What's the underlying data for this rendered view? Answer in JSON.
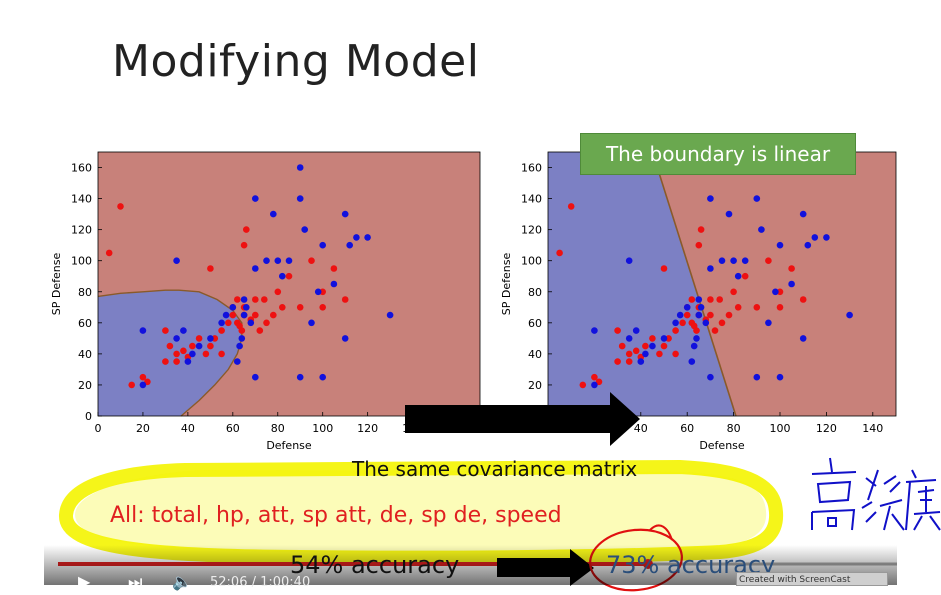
{
  "slide": {
    "title": "Modifying Model",
    "callout": "The boundary is linear",
    "covariance_label": "The same covariance matrix",
    "features_label": "All: total, hp, att, sp att, de, sp de, speed",
    "accuracy_before": "54% accuracy",
    "accuracy_after": "73% accuracy",
    "handwriting": "高維度"
  },
  "player": {
    "time": "52:06 / 1:00:40",
    "watermark": "Created with ScreenCast"
  },
  "colors": {
    "red_region": "#c8817a",
    "blue_region": "#7c80c4",
    "red_point": "#ee1111",
    "blue_point": "#1111dd",
    "callout_bg": "#6aa84f",
    "highlight": "#f4f400",
    "annotation": "#e01010",
    "ink": "#1010c8"
  },
  "chart_data": [
    {
      "type": "scatter",
      "xlabel": "Defense",
      "ylabel": "SP Defense",
      "xlim": [
        0,
        170
      ],
      "ylim": [
        0,
        170
      ],
      "xticks": [
        0,
        20,
        40,
        60,
        80,
        100,
        120,
        140,
        160
      ],
      "yticks": [
        0,
        20,
        40,
        60,
        80,
        100,
        120,
        140,
        160
      ],
      "regions": [
        "red",
        "blue (curved boundary, lower-left)"
      ],
      "series": [
        {
          "color": "red",
          "points": [
            [
              5,
              105
            ],
            [
              10,
              135
            ],
            [
              15,
              20
            ],
            [
              20,
              25
            ],
            [
              22,
              22
            ],
            [
              30,
              55
            ],
            [
              30,
              35
            ],
            [
              32,
              45
            ],
            [
              35,
              40
            ],
            [
              35,
              35
            ],
            [
              38,
              42
            ],
            [
              40,
              38
            ],
            [
              42,
              45
            ],
            [
              45,
              50
            ],
            [
              48,
              40
            ],
            [
              50,
              95
            ],
            [
              50,
              45
            ],
            [
              52,
              50
            ],
            [
              55,
              55
            ],
            [
              55,
              40
            ],
            [
              58,
              60
            ],
            [
              60,
              70
            ],
            [
              60,
              65
            ],
            [
              62,
              75
            ],
            [
              62,
              60
            ],
            [
              63,
              58
            ],
            [
              64,
              55
            ],
            [
              65,
              110
            ],
            [
              65,
              65
            ],
            [
              65,
              70
            ],
            [
              66,
              120
            ],
            [
              68,
              62
            ],
            [
              70,
              75
            ],
            [
              70,
              65
            ],
            [
              72,
              55
            ],
            [
              74,
              75
            ],
            [
              75,
              60
            ],
            [
              78,
              65
            ],
            [
              80,
              80
            ],
            [
              82,
              70
            ],
            [
              85,
              90
            ],
            [
              90,
              70
            ],
            [
              95,
              100
            ],
            [
              100,
              70
            ],
            [
              100,
              80
            ],
            [
              105,
              95
            ],
            [
              110,
              75
            ]
          ]
        },
        {
          "color": "blue",
          "points": [
            [
              20,
              55
            ],
            [
              20,
              20
            ],
            [
              35,
              100
            ],
            [
              35,
              50
            ],
            [
              38,
              55
            ],
            [
              40,
              35
            ],
            [
              42,
              40
            ],
            [
              45,
              45
            ],
            [
              50,
              50
            ],
            [
              55,
              60
            ],
            [
              57,
              65
            ],
            [
              60,
              70
            ],
            [
              62,
              35
            ],
            [
              63,
              45
            ],
            [
              64,
              50
            ],
            [
              65,
              75
            ],
            [
              65,
              65
            ],
            [
              66,
              70
            ],
            [
              68,
              60
            ],
            [
              70,
              140
            ],
            [
              70,
              95
            ],
            [
              70,
              25
            ],
            [
              75,
              100
            ],
            [
              78,
              130
            ],
            [
              80,
              100
            ],
            [
              82,
              90
            ],
            [
              85,
              100
            ],
            [
              90,
              160
            ],
            [
              90,
              140
            ],
            [
              90,
              25
            ],
            [
              92,
              120
            ],
            [
              95,
              60
            ],
            [
              98,
              80
            ],
            [
              100,
              110
            ],
            [
              100,
              25
            ],
            [
              105,
              85
            ],
            [
              110,
              130
            ],
            [
              110,
              50
            ],
            [
              112,
              110
            ],
            [
              115,
              115
            ],
            [
              120,
              115
            ],
            [
              130,
              65
            ]
          ]
        }
      ]
    },
    {
      "type": "scatter",
      "xlabel": "Defense",
      "ylabel": "SP Defense",
      "xlim": [
        0,
        150
      ],
      "ylim": [
        0,
        170
      ],
      "xticks": [
        0,
        20,
        40,
        60,
        80,
        100,
        120,
        140
      ],
      "yticks": [
        0,
        20,
        40,
        60,
        80,
        100,
        120,
        140,
        160
      ],
      "regions": [
        "blue (left)",
        "red (right, linear boundary)"
      ],
      "series": [
        {
          "color": "red",
          "points": [
            [
              5,
              105
            ],
            [
              10,
              135
            ],
            [
              15,
              20
            ],
            [
              20,
              25
            ],
            [
              22,
              22
            ],
            [
              30,
              55
            ],
            [
              30,
              35
            ],
            [
              32,
              45
            ],
            [
              35,
              40
            ],
            [
              35,
              35
            ],
            [
              38,
              42
            ],
            [
              40,
              38
            ],
            [
              42,
              45
            ],
            [
              45,
              50
            ],
            [
              48,
              40
            ],
            [
              50,
              95
            ],
            [
              50,
              45
            ],
            [
              52,
              50
            ],
            [
              55,
              55
            ],
            [
              55,
              40
            ],
            [
              58,
              60
            ],
            [
              60,
              70
            ],
            [
              60,
              65
            ],
            [
              62,
              75
            ],
            [
              62,
              60
            ],
            [
              63,
              58
            ],
            [
              64,
              55
            ],
            [
              65,
              110
            ],
            [
              65,
              65
            ],
            [
              65,
              70
            ],
            [
              66,
              120
            ],
            [
              68,
              62
            ],
            [
              70,
              75
            ],
            [
              70,
              65
            ],
            [
              72,
              55
            ],
            [
              74,
              75
            ],
            [
              75,
              60
            ],
            [
              78,
              65
            ],
            [
              80,
              80
            ],
            [
              82,
              70
            ],
            [
              85,
              90
            ],
            [
              90,
              70
            ],
            [
              95,
              100
            ],
            [
              100,
              70
            ],
            [
              100,
              80
            ],
            [
              105,
              95
            ],
            [
              110,
              75
            ]
          ]
        },
        {
          "color": "blue",
          "points": [
            [
              20,
              55
            ],
            [
              20,
              20
            ],
            [
              35,
              100
            ],
            [
              35,
              50
            ],
            [
              38,
              55
            ],
            [
              40,
              35
            ],
            [
              42,
              40
            ],
            [
              45,
              45
            ],
            [
              50,
              50
            ],
            [
              55,
              60
            ],
            [
              57,
              65
            ],
            [
              60,
              70
            ],
            [
              62,
              35
            ],
            [
              63,
              45
            ],
            [
              64,
              50
            ],
            [
              65,
              75
            ],
            [
              65,
              65
            ],
            [
              66,
              70
            ],
            [
              68,
              60
            ],
            [
              70,
              140
            ],
            [
              70,
              95
            ],
            [
              70,
              25
            ],
            [
              75,
              100
            ],
            [
              78,
              130
            ],
            [
              80,
              100
            ],
            [
              82,
              90
            ],
            [
              85,
              100
            ],
            [
              90,
              160
            ],
            [
              90,
              140
            ],
            [
              90,
              25
            ],
            [
              92,
              120
            ],
            [
              95,
              60
            ],
            [
              98,
              80
            ],
            [
              100,
              110
            ],
            [
              100,
              25
            ],
            [
              105,
              85
            ],
            [
              110,
              130
            ],
            [
              110,
              50
            ],
            [
              112,
              110
            ],
            [
              115,
              115
            ],
            [
              120,
              115
            ],
            [
              130,
              65
            ]
          ]
        }
      ]
    }
  ]
}
